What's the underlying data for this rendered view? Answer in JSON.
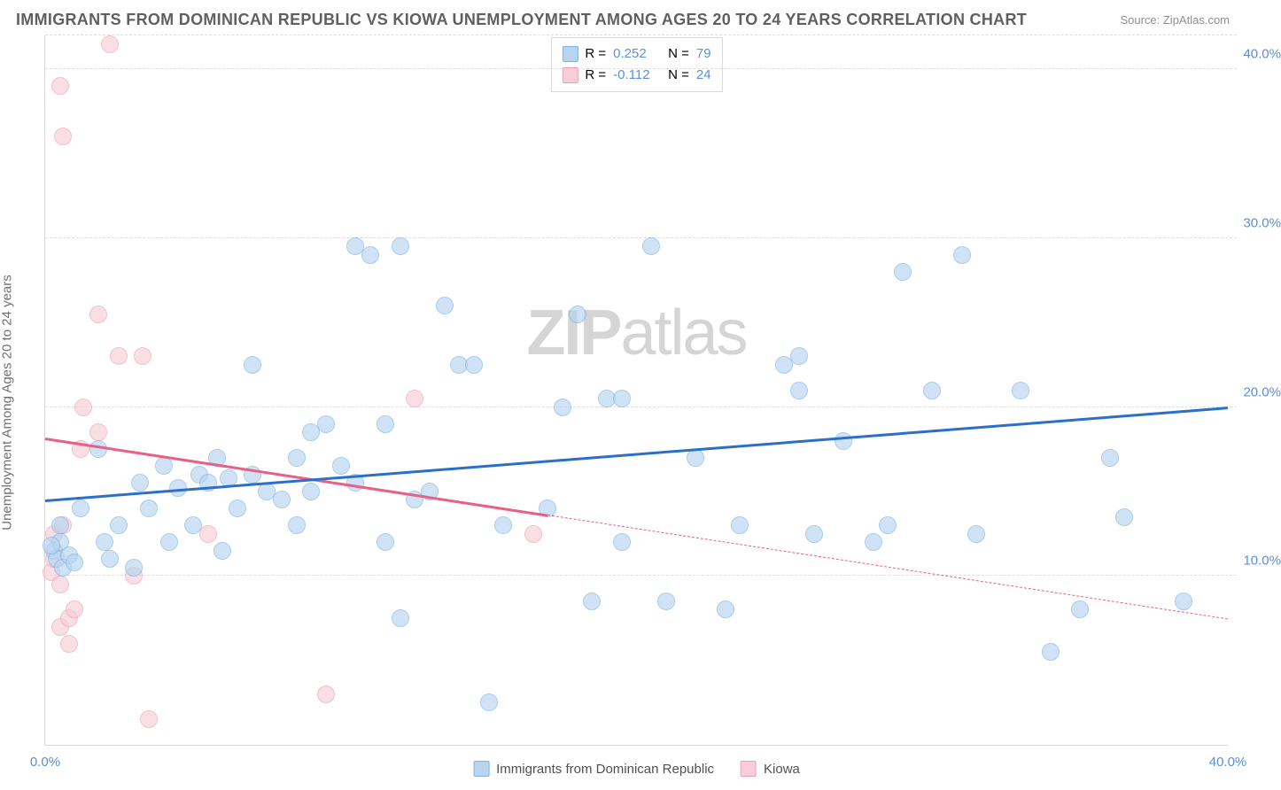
{
  "title": "IMMIGRANTS FROM DOMINICAN REPUBLIC VS KIOWA UNEMPLOYMENT AMONG AGES 20 TO 24 YEARS CORRELATION CHART",
  "source": "Source: ZipAtlas.com",
  "ylabel": "Unemployment Among Ages 20 to 24 years",
  "watermark_bold": "ZIP",
  "watermark_light": "atlas",
  "chart": {
    "type": "scatter",
    "xlim": [
      0,
      40
    ],
    "ylim": [
      0,
      42
    ],
    "x_ticks": [
      {
        "v": 0,
        "l": "0.0%"
      },
      {
        "v": 40,
        "l": "40.0%"
      }
    ],
    "y_ticks": [
      {
        "v": 10,
        "l": "10.0%"
      },
      {
        "v": 20,
        "l": "20.0%"
      },
      {
        "v": 30,
        "l": "30.0%"
      },
      {
        "v": 40,
        "l": "40.0%"
      }
    ],
    "gridlines_y": [
      10,
      20,
      30,
      40,
      42
    ],
    "background_color": "#ffffff",
    "grid_color": "#dedede",
    "series": [
      {
        "name": "Immigrants from Dominican Republic",
        "color_fill": "#b7d4f0",
        "color_stroke": "#7fb3e6",
        "marker_radius": 10,
        "fill_opacity": 0.65,
        "R": "0.252",
        "N": "79",
        "trend": {
          "x1": 0,
          "y1": 14.5,
          "x2": 40,
          "y2": 20,
          "color": "#2a6fc9",
          "width": 3,
          "solid_to_x": 40
        },
        "points": [
          [
            0.3,
            11.5
          ],
          [
            0.4,
            11
          ],
          [
            0.5,
            12
          ],
          [
            0.6,
            10.5
          ],
          [
            0.8,
            11.2
          ],
          [
            1.0,
            10.8
          ],
          [
            0.2,
            11.8
          ],
          [
            0.5,
            13
          ],
          [
            1.2,
            14
          ],
          [
            1.8,
            17.5
          ],
          [
            2.0,
            12
          ],
          [
            2.2,
            11
          ],
          [
            2.5,
            13
          ],
          [
            3.0,
            10.5
          ],
          [
            3.2,
            15.5
          ],
          [
            3.5,
            14
          ],
          [
            4.0,
            16.5
          ],
          [
            4.2,
            12
          ],
          [
            4.5,
            15.2
          ],
          [
            5.0,
            13
          ],
          [
            5.2,
            16
          ],
          [
            5.5,
            15.5
          ],
          [
            5.8,
            17
          ],
          [
            6.0,
            11.5
          ],
          [
            6.2,
            15.8
          ],
          [
            6.5,
            14
          ],
          [
            7.0,
            22.5
          ],
          [
            7.0,
            16
          ],
          [
            7.5,
            15
          ],
          [
            8.0,
            14.5
          ],
          [
            8.5,
            17
          ],
          [
            8.5,
            13
          ],
          [
            9.0,
            18.5
          ],
          [
            9.0,
            15
          ],
          [
            9.5,
            19
          ],
          [
            10.0,
            16.5
          ],
          [
            10.5,
            15.5
          ],
          [
            10.5,
            29.5
          ],
          [
            11.0,
            29
          ],
          [
            11.5,
            12
          ],
          [
            11.5,
            19
          ],
          [
            12.0,
            29.5
          ],
          [
            12.0,
            7.5
          ],
          [
            12.5,
            14.5
          ],
          [
            13.0,
            15
          ],
          [
            13.5,
            26
          ],
          [
            14.0,
            22.5
          ],
          [
            14.5,
            22.5
          ],
          [
            15.0,
            2.5
          ],
          [
            15.5,
            13
          ],
          [
            17.0,
            14
          ],
          [
            17.5,
            20
          ],
          [
            18.0,
            25.5
          ],
          [
            18.5,
            8.5
          ],
          [
            19.0,
            20.5
          ],
          [
            19.5,
            20.5
          ],
          [
            19.5,
            12
          ],
          [
            20.5,
            29.5
          ],
          [
            21.0,
            8.5
          ],
          [
            22.0,
            17
          ],
          [
            23.0,
            8
          ],
          [
            23.5,
            13
          ],
          [
            25.0,
            22.5
          ],
          [
            25.5,
            21
          ],
          [
            25.5,
            23
          ],
          [
            26.0,
            12.5
          ],
          [
            27.0,
            18
          ],
          [
            28.0,
            12
          ],
          [
            28.5,
            13
          ],
          [
            29.0,
            28
          ],
          [
            30.0,
            21
          ],
          [
            31.0,
            29
          ],
          [
            31.5,
            12.5
          ],
          [
            33.0,
            21
          ],
          [
            34.0,
            5.5
          ],
          [
            35.0,
            8
          ],
          [
            36.0,
            17
          ],
          [
            36.5,
            13.5
          ],
          [
            38.5,
            8.5
          ]
        ]
      },
      {
        "name": "Kiowa",
        "color_fill": "#f7cdd7",
        "color_stroke": "#f0a0b5",
        "marker_radius": 10,
        "fill_opacity": 0.65,
        "R": "-0.112",
        "N": "24",
        "trend": {
          "x1": 0,
          "y1": 18.2,
          "x2": 40,
          "y2": 7.5,
          "color": "#e95f85",
          "width": 2.5,
          "solid_to_x": 17
        },
        "points": [
          [
            0.2,
            10.2
          ],
          [
            0.3,
            11
          ],
          [
            0.5,
            9.5
          ],
          [
            0.5,
            7
          ],
          [
            0.8,
            7.5
          ],
          [
            1.0,
            8
          ],
          [
            0.8,
            6
          ],
          [
            0.3,
            12.5
          ],
          [
            0.6,
            13
          ],
          [
            1.3,
            20
          ],
          [
            1.2,
            17.5
          ],
          [
            1.8,
            18.5
          ],
          [
            0.6,
            36
          ],
          [
            0.5,
            39
          ],
          [
            2.2,
            41.5
          ],
          [
            1.8,
            25.5
          ],
          [
            2.5,
            23
          ],
          [
            3.3,
            23
          ],
          [
            3.0,
            10
          ],
          [
            3.5,
            1.5
          ],
          [
            5.5,
            12.5
          ],
          [
            9.5,
            3
          ],
          [
            12.5,
            20.5
          ],
          [
            16.5,
            12.5
          ]
        ]
      }
    ]
  },
  "legend_top": {
    "r_label": "R =",
    "n_label": "N =",
    "label_color": "#707070",
    "value_color": "#5b8fd6"
  },
  "legend_bottom": {
    "text_color": "#505050"
  }
}
